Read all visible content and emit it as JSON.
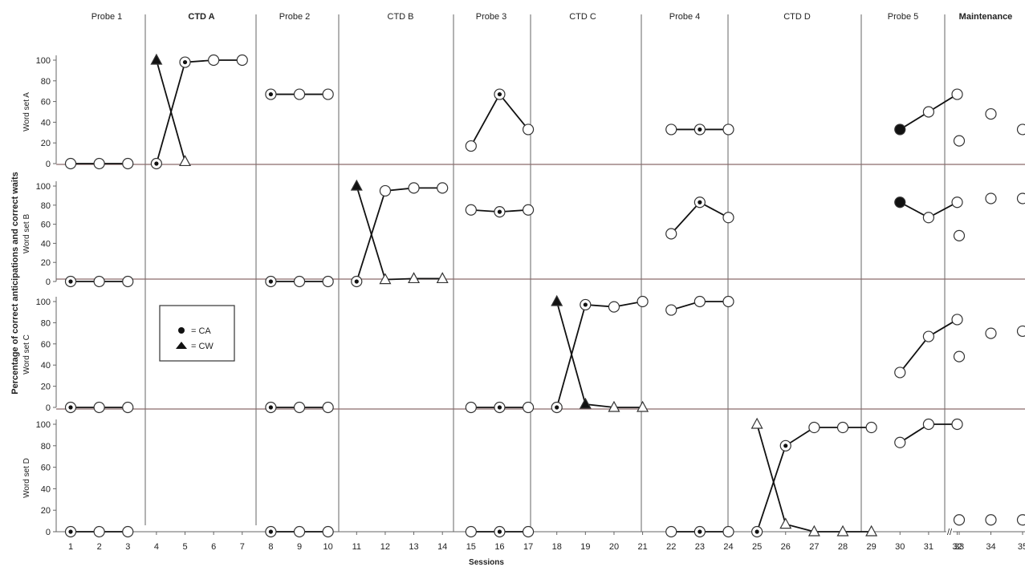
{
  "chart_data": {
    "type": "line",
    "ylabel": "Percentage of correct anticipations and correct waits",
    "xlabel": "Sessions",
    "ylim": [
      0,
      100
    ],
    "yticks": [
      0,
      20,
      40,
      60,
      80,
      100
    ],
    "xticks": [
      1,
      2,
      3,
      4,
      5,
      6,
      7,
      8,
      9,
      10,
      11,
      12,
      13,
      14,
      15,
      16,
      17,
      18,
      19,
      20,
      21,
      22,
      23,
      24,
      25,
      26,
      27,
      28,
      29,
      30,
      31,
      32,
      33,
      34,
      35
    ],
    "phases": [
      "Probe 1",
      "CTD A",
      "Probe 2",
      "CTD B",
      "Probe 3",
      "CTD C",
      "Probe 4",
      "CTD D",
      "Probe 5",
      "Maintenance"
    ],
    "axis_break": "//",
    "legend": {
      "entries": [
        {
          "marker": "filled-circle",
          "label": "= CA"
        },
        {
          "marker": "filled-triangle",
          "label": "= CW"
        }
      ],
      "placement": "upper-left, third panel"
    },
    "panels": [
      {
        "label": "Word set A",
        "series": [
          {
            "marker": "circle",
            "segments": [
              [
                [
                  1,
                  0
                ],
                [
                  2,
                  0
                ],
                [
                  3,
                  0
                ]
              ],
              [
                [
                  4,
                  0
                ],
                [
                  5,
                  98
                ],
                [
                  6,
                  100
                ],
                [
                  7,
                  100
                ]
              ],
              [
                [
                  8,
                  67
                ],
                [
                  9,
                  67
                ],
                [
                  10,
                  67
                ]
              ],
              [
                [
                  15,
                  17
                ],
                [
                  16,
                  67
                ],
                [
                  17,
                  33
                ]
              ],
              [
                [
                  22,
                  33
                ],
                [
                  23,
                  33
                ],
                [
                  24,
                  33
                ]
              ],
              [
                [
                  30,
                  33
                ],
                [
                  31,
                  50
                ],
                [
                  32,
                  67
                ]
              ],
              [
                [
                  33,
                  22
                ]
              ],
              [
                [
                  34,
                  48
                ]
              ],
              [
                [
                  35,
                  33
                ]
              ]
            ]
          },
          {
            "marker": "triangle",
            "segments": [
              [
                [
                  4,
                  100
                ],
                [
                  5,
                  2
                ]
              ]
            ]
          }
        ]
      },
      {
        "label": "Word set B",
        "series": [
          {
            "marker": "circle",
            "segments": [
              [
                [
                  1,
                  0
                ],
                [
                  2,
                  0
                ],
                [
                  3,
                  0
                ]
              ],
              [
                [
                  8,
                  0
                ],
                [
                  9,
                  0
                ],
                [
                  10,
                  0
                ]
              ],
              [
                [
                  11,
                  0
                ],
                [
                  12,
                  95
                ],
                [
                  13,
                  98
                ],
                [
                  14,
                  98
                ]
              ],
              [
                [
                  15,
                  75
                ],
                [
                  16,
                  73
                ],
                [
                  17,
                  75
                ]
              ],
              [
                [
                  22,
                  50
                ],
                [
                  23,
                  83
                ],
                [
                  24,
                  67
                ]
              ],
              [
                [
                  30,
                  83
                ],
                [
                  31,
                  67
                ],
                [
                  32,
                  83
                ]
              ],
              [
                [
                  33,
                  48
                ]
              ],
              [
                [
                  34,
                  87
                ]
              ],
              [
                [
                  35,
                  87
                ]
              ]
            ]
          },
          {
            "marker": "triangle",
            "segments": [
              [
                [
                  11,
                  100
                ],
                [
                  12,
                  2
                ],
                [
                  13,
                  3
                ],
                [
                  14,
                  3
                ]
              ]
            ]
          }
        ]
      },
      {
        "label": "Word set C",
        "series": [
          {
            "marker": "circle",
            "segments": [
              [
                [
                  1,
                  0
                ],
                [
                  2,
                  0
                ],
                [
                  3,
                  0
                ]
              ],
              [
                [
                  8,
                  0
                ],
                [
                  9,
                  0
                ],
                [
                  10,
                  0
                ]
              ],
              [
                [
                  15,
                  0
                ],
                [
                  16,
                  0
                ],
                [
                  17,
                  0
                ]
              ],
              [
                [
                  18,
                  0
                ],
                [
                  19,
                  97
                ],
                [
                  20,
                  95
                ],
                [
                  21,
                  100
                ]
              ],
              [
                [
                  22,
                  92
                ],
                [
                  23,
                  100
                ],
                [
                  24,
                  100
                ]
              ],
              [
                [
                  30,
                  33
                ],
                [
                  31,
                  67
                ],
                [
                  32,
                  83
                ]
              ],
              [
                [
                  33,
                  48
                ]
              ],
              [
                [
                  34,
                  70
                ]
              ],
              [
                [
                  35,
                  72
                ]
              ]
            ]
          },
          {
            "marker": "triangle",
            "segments": [
              [
                [
                  18,
                  100
                ],
                [
                  19,
                  3
                ],
                [
                  20,
                  0
                ],
                [
                  21,
                  0
                ]
              ]
            ]
          }
        ]
      },
      {
        "label": "Word set  D",
        "series": [
          {
            "marker": "circle",
            "segments": [
              [
                [
                  1,
                  0
                ],
                [
                  2,
                  0
                ],
                [
                  3,
                  0
                ]
              ],
              [
                [
                  8,
                  0
                ],
                [
                  9,
                  0
                ],
                [
                  10,
                  0
                ]
              ],
              [
                [
                  15,
                  0
                ],
                [
                  16,
                  0
                ],
                [
                  17,
                  0
                ]
              ],
              [
                [
                  22,
                  0
                ],
                [
                  23,
                  0
                ],
                [
                  24,
                  0
                ]
              ],
              [
                [
                  25,
                  0
                ],
                [
                  26,
                  80
                ],
                [
                  27,
                  97
                ],
                [
                  28,
                  97
                ],
                [
                  29,
                  97
                ]
              ],
              [
                [
                  30,
                  83
                ],
                [
                  31,
                  100
                ],
                [
                  32,
                  100
                ]
              ],
              [
                [
                  33,
                  11
                ]
              ],
              [
                [
                  34,
                  11
                ]
              ],
              [
                [
                  35,
                  11
                ]
              ]
            ]
          },
          {
            "marker": "triangle",
            "segments": [
              [
                [
                  25,
                  100
                ],
                [
                  26,
                  7
                ],
                [
                  27,
                  0
                ],
                [
                  28,
                  0
                ],
                [
                  29,
                  0
                ]
              ]
            ]
          }
        ]
      }
    ],
    "marker_fill": {
      "filled": [
        [
          0,
          "circle",
          1
        ],
        [
          0,
          "circle",
          4
        ],
        [
          0,
          "circle",
          5
        ],
        [
          0,
          "circle",
          8
        ],
        [
          0,
          "circle",
          16
        ],
        [
          0,
          "circle",
          23
        ],
        [
          0,
          "circle",
          30
        ],
        [
          1,
          "circle",
          1
        ],
        [
          1,
          "circle",
          8
        ],
        [
          1,
          "circle",
          11
        ],
        [
          1,
          "circle",
          16
        ],
        [
          1,
          "circle",
          23
        ],
        [
          1,
          "circle",
          30
        ],
        [
          2,
          "circle",
          1
        ],
        [
          2,
          "circle",
          8
        ],
        [
          2,
          "circle",
          16
        ],
        [
          2,
          "circle",
          18
        ],
        [
          2,
          "circle",
          19
        ],
        [
          3,
          "circle",
          1
        ],
        [
          3,
          "circle",
          8
        ],
        [
          3,
          "circle",
          16
        ],
        [
          3,
          "circle",
          23
        ],
        [
          3,
          "circle",
          25
        ],
        [
          3,
          "circle",
          26
        ],
        [
          0,
          "triangle",
          4
        ],
        [
          1,
          "triangle",
          11
        ],
        [
          2,
          "triangle",
          18
        ],
        [
          2,
          "triangle",
          19
        ]
      ],
      "dotted": [
        [
          0,
          "circle",
          4
        ],
        [
          0,
          "circle",
          5
        ],
        [
          0,
          "circle",
          8
        ],
        [
          0,
          "circle",
          16
        ],
        [
          0,
          "circle",
          23
        ],
        [
          1,
          "circle",
          1
        ],
        [
          1,
          "circle",
          8
        ],
        [
          1,
          "circle",
          11
        ],
        [
          1,
          "circle",
          16
        ],
        [
          1,
          "circle",
          23
        ],
        [
          2,
          "circle",
          1
        ],
        [
          2,
          "circle",
          8
        ],
        [
          2,
          "circle",
          16
        ],
        [
          2,
          "circle",
          18
        ],
        [
          2,
          "circle",
          19
        ],
        [
          3,
          "circle",
          1
        ],
        [
          3,
          "circle",
          8
        ],
        [
          3,
          "circle",
          16
        ],
        [
          3,
          "circle",
          23
        ],
        [
          3,
          "circle",
          25
        ],
        [
          3,
          "circle",
          26
        ]
      ],
      "solid": [
        [
          0,
          "circle",
          30
        ],
        [
          1,
          "circle",
          30
        ]
      ]
    },
    "colors": {
      "line": "#111111",
      "marker_edge": "#333333",
      "divider": "#666666",
      "baseline": "#8a6a6a"
    }
  }
}
